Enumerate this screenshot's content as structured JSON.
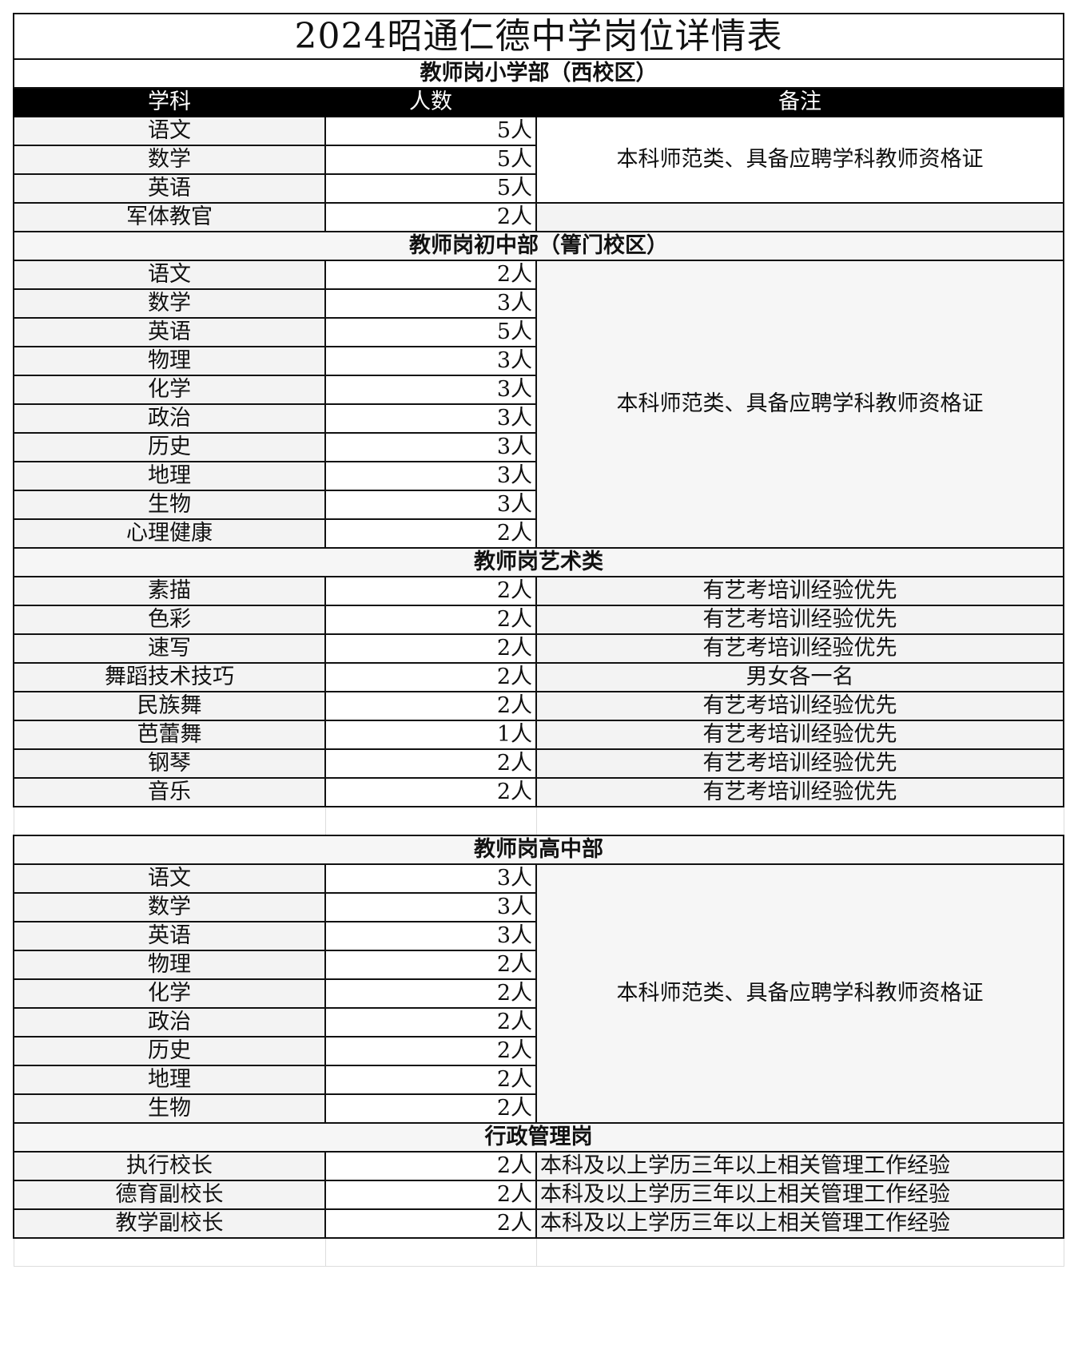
{
  "title": "2024昭通仁德中学岗位详情表",
  "header": {
    "subject": "学科",
    "count": "人数",
    "note": "备注"
  },
  "sections": [
    {
      "title": "教师岗小学部（西校区）",
      "show_header": true,
      "merged_note": "本科师范类、具备应聘学科教师资格证",
      "rows": [
        {
          "subject": "语文",
          "count": "5人"
        },
        {
          "subject": "数学",
          "count": "5人"
        },
        {
          "subject": "英语",
          "count": "5人"
        },
        {
          "subject": "军体教官",
          "count": "2人",
          "note": ""
        }
      ]
    },
    {
      "title": "教师岗初中部（箐门校区）",
      "merged_note": "本科师范类、具备应聘学科教师资格证",
      "rows": [
        {
          "subject": "语文",
          "count": "2人"
        },
        {
          "subject": "数学",
          "count": "3人"
        },
        {
          "subject": "英语",
          "count": "5人"
        },
        {
          "subject": "物理",
          "count": "3人"
        },
        {
          "subject": "化学",
          "count": "3人"
        },
        {
          "subject": "政治",
          "count": "3人"
        },
        {
          "subject": "历史",
          "count": "3人"
        },
        {
          "subject": "地理",
          "count": "3人"
        },
        {
          "subject": "生物",
          "count": "3人"
        },
        {
          "subject": "心理健康",
          "count": "2人"
        }
      ]
    },
    {
      "title": "教师岗艺术类",
      "rows": [
        {
          "subject": "素描",
          "count": "2人",
          "note": "有艺考培训经验优先"
        },
        {
          "subject": "色彩",
          "count": "2人",
          "note": "有艺考培训经验优先"
        },
        {
          "subject": "速写",
          "count": "2人",
          "note": "有艺考培训经验优先"
        },
        {
          "subject": "舞蹈技术技巧",
          "count": "2人",
          "note": "男女各一名"
        },
        {
          "subject": "民族舞",
          "count": "2人",
          "note": "有艺考培训经验优先"
        },
        {
          "subject": "芭蕾舞",
          "count": "1人",
          "note": "有艺考培训经验优先"
        },
        {
          "subject": "钢琴",
          "count": "2人",
          "note": "有艺考培训经验优先"
        },
        {
          "subject": "音乐",
          "count": "2人",
          "note": "有艺考培训经验优先"
        }
      ],
      "blank_after": true
    },
    {
      "title": "教师岗高中部",
      "merged_note": "本科师范类、具备应聘学科教师资格证",
      "rows": [
        {
          "subject": "语文",
          "count": "3人"
        },
        {
          "subject": "数学",
          "count": "3人"
        },
        {
          "subject": "英语",
          "count": "3人"
        },
        {
          "subject": "物理",
          "count": "2人"
        },
        {
          "subject": "化学",
          "count": "2人"
        },
        {
          "subject": "政治",
          "count": "2人"
        },
        {
          "subject": "历史",
          "count": "2人"
        },
        {
          "subject": "地理",
          "count": "2人"
        },
        {
          "subject": "生物",
          "count": "2人"
        }
      ]
    },
    {
      "title": "行政管理岗",
      "left_notes": true,
      "rows": [
        {
          "subject": "执行校长",
          "count": "2人",
          "note": "本科及以上学历三年以上相关管理工作经验"
        },
        {
          "subject": "德育副校长",
          "count": "2人",
          "note": "本科及以上学历三年以上相关管理工作经验"
        },
        {
          "subject": "教学副校长",
          "count": "2人",
          "note": "本科及以上学历三年以上相关管理工作经验"
        }
      ],
      "blank_after": true
    }
  ]
}
